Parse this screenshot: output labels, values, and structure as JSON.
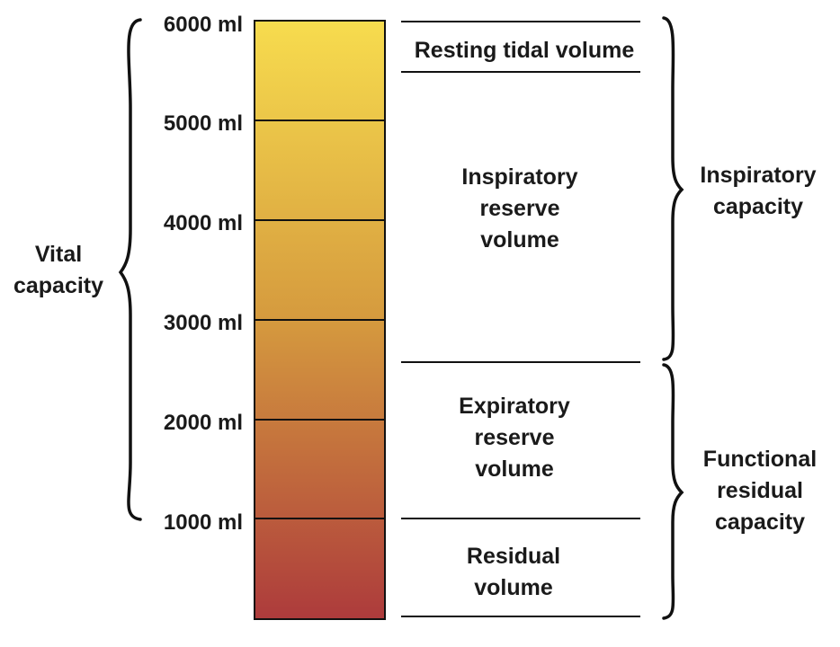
{
  "colors": {
    "gradient_top": "#f7dc4e",
    "gradient_mid": "#d59a3e",
    "gradient_bottom": "#ad3b3c",
    "line": "#111111"
  },
  "scale_labels": [
    "6000 ml",
    "5000 ml",
    "4000 ml",
    "3000 ml",
    "2000 ml",
    "1000 ml"
  ],
  "volumes": {
    "resting_tidal": [
      "Resting tidal volume"
    ],
    "inspiratory_reserve": [
      "Inspiratory",
      "reserve",
      "volume"
    ],
    "expiratory_reserve": [
      "Expiratory",
      "reserve",
      "volume"
    ],
    "residual": [
      "Residual",
      "volume"
    ]
  },
  "capacities": {
    "vital": [
      "Vital",
      "capacity"
    ],
    "inspiratory": [
      "Inspiratory",
      "capacity"
    ],
    "functional_residual": [
      "Functional",
      "residual",
      "capacity"
    ]
  }
}
